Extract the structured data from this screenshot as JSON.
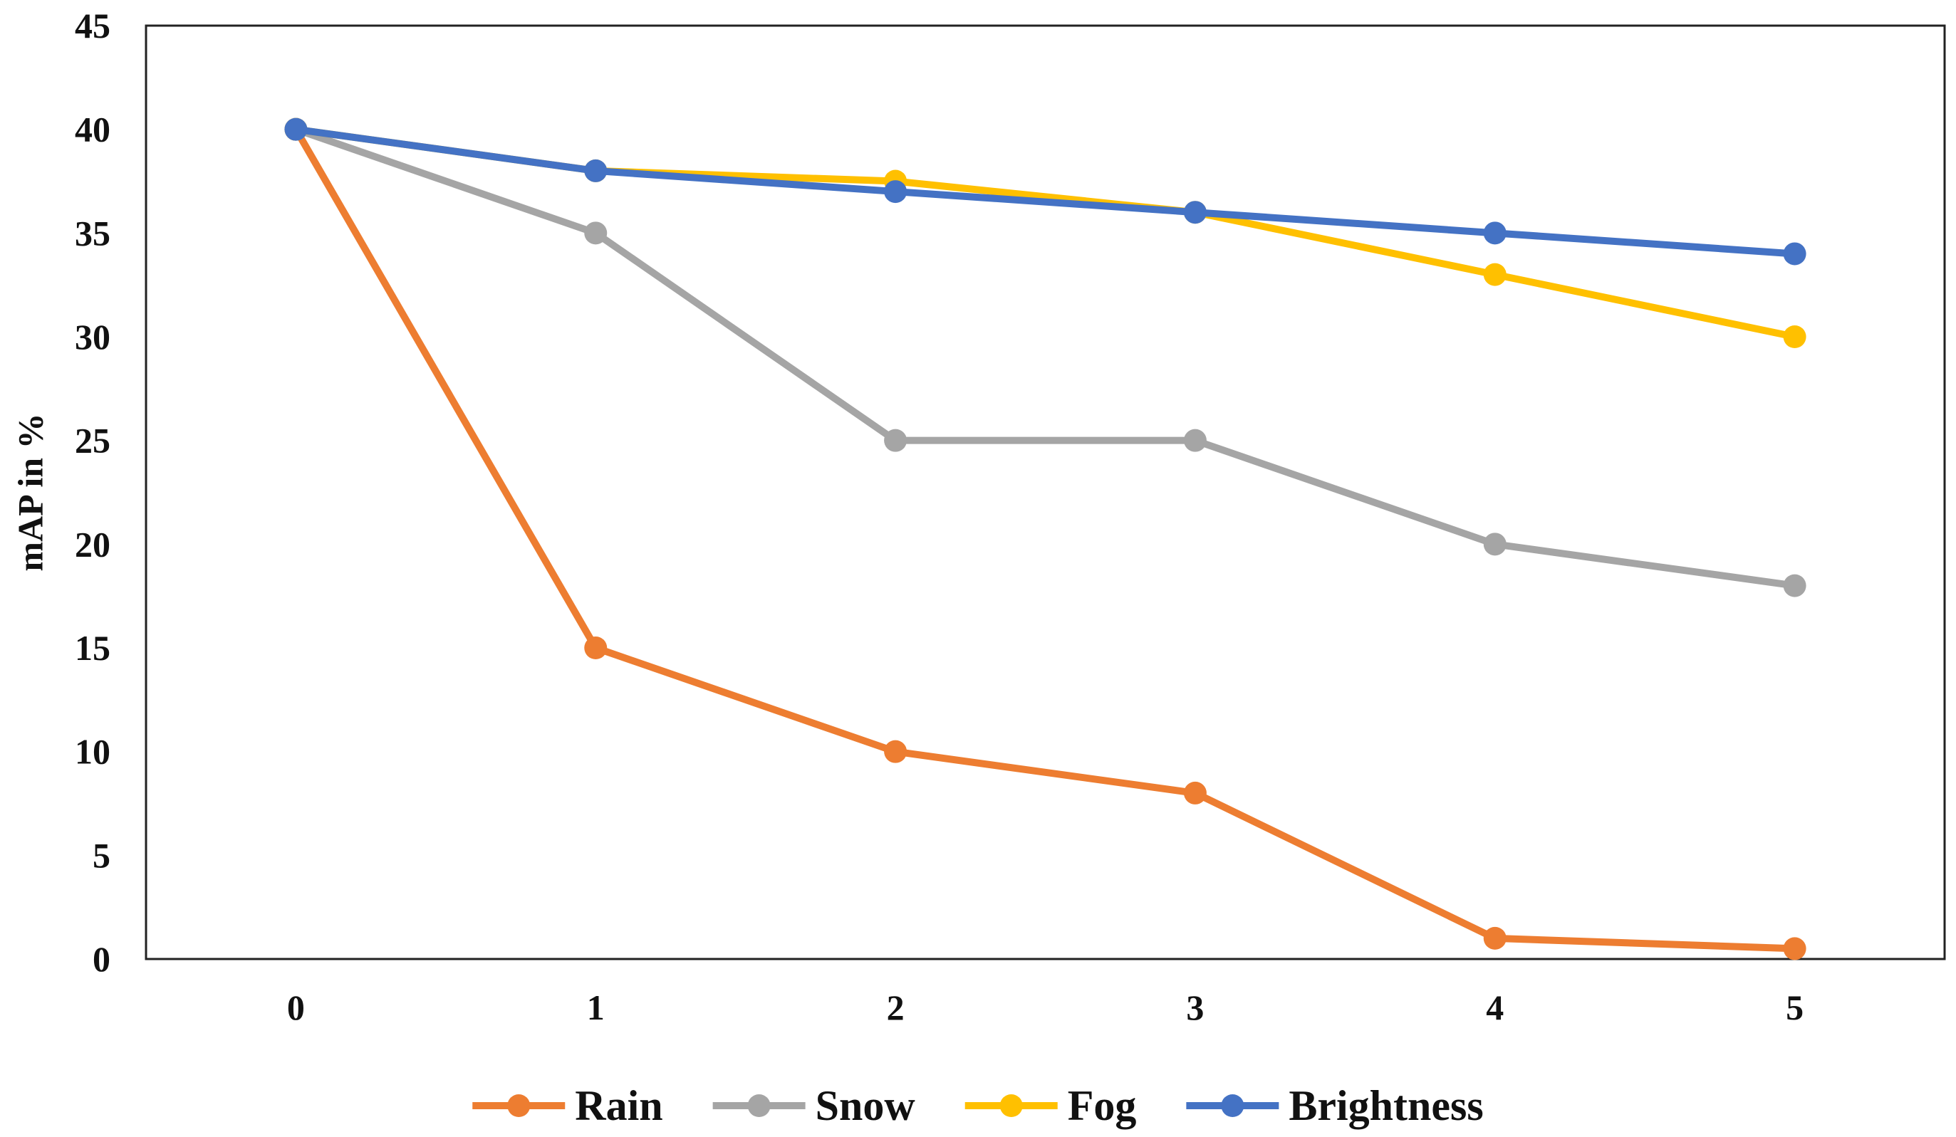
{
  "chart_data": {
    "type": "line",
    "title": "",
    "xlabel": "",
    "ylabel": "mAP in %",
    "x": [
      0,
      1,
      2,
      3,
      4,
      5
    ],
    "xlim": [
      -0.5,
      5.5
    ],
    "ylim": [
      0,
      45
    ],
    "yticks": [
      0,
      5,
      10,
      15,
      20,
      25,
      30,
      35,
      40,
      45
    ],
    "grid": false,
    "legend_position": "bottom",
    "series": [
      {
        "name": "Rain",
        "color": "#ED7D31",
        "values": [
          40,
          15,
          10,
          8,
          1,
          0.5
        ]
      },
      {
        "name": "Snow",
        "color": "#A5A5A5",
        "values": [
          40,
          35,
          25,
          25,
          20,
          18
        ]
      },
      {
        "name": "Fog",
        "color": "#FFC000",
        "values": [
          40,
          38,
          37.5,
          36,
          33,
          30
        ]
      },
      {
        "name": "Brightness",
        "color": "#4472C4",
        "values": [
          40,
          38,
          37,
          36,
          35,
          34
        ]
      }
    ]
  }
}
